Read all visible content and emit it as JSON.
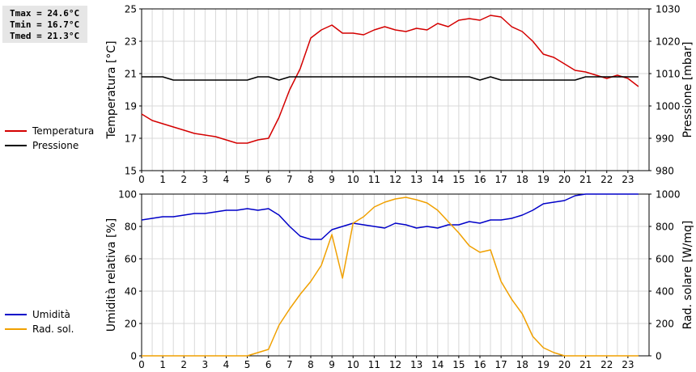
{
  "stats": {
    "tmax": "Tmax = 24.6°C",
    "tmin": "Tmin = 16.7°C",
    "tmed": "Tmed = 21.3°C"
  },
  "legend_top": [
    {
      "label": "Temperatura",
      "color": "#d40000"
    },
    {
      "label": "Pressione",
      "color": "#000000"
    }
  ],
  "legend_bottom": [
    {
      "label": "Umidità",
      "color": "#0000c8"
    },
    {
      "label": "Rad. sol.",
      "color": "#f0a000"
    }
  ],
  "chart_data": [
    {
      "type": "line",
      "x_ticks": [
        "0",
        "1",
        "2",
        "3",
        "4",
        "5",
        "6",
        "7",
        "8",
        "9",
        "10",
        "11",
        "12",
        "13",
        "14",
        "15",
        "16",
        "17",
        "18",
        "19",
        "20",
        "21",
        "22",
        "23"
      ],
      "xlim": [
        0,
        24
      ],
      "ylabel": "Temperatura [°C]",
      "ylim": [
        15,
        25
      ],
      "y_ticks": [
        15,
        17,
        19,
        21,
        23,
        25
      ],
      "y2label": "Pressione [mbar]",
      "y2lim": [
        980,
        1030
      ],
      "y2_ticks": [
        980,
        990,
        1000,
        1010,
        1020,
        1030
      ],
      "grid": true,
      "series": [
        {
          "name": "Temperatura",
          "axis": "left",
          "color": "#d40000",
          "x": [
            0,
            0.5,
            1,
            1.5,
            2,
            2.5,
            3,
            3.5,
            4,
            4.5,
            5,
            5.5,
            6,
            6.5,
            7,
            7.5,
            8,
            8.5,
            9,
            9.5,
            10,
            10.5,
            11,
            11.5,
            12,
            12.5,
            13,
            13.5,
            14,
            14.5,
            15,
            15.5,
            16,
            16.5,
            17,
            17.5,
            18,
            18.5,
            19,
            19.5,
            20,
            20.5,
            21,
            21.5,
            22,
            22.5,
            23,
            23.5
          ],
          "y": [
            18.5,
            18.1,
            17.9,
            17.7,
            17.5,
            17.3,
            17.2,
            17.1,
            16.9,
            16.7,
            16.7,
            16.9,
            17.0,
            18.3,
            20.0,
            21.3,
            23.2,
            23.7,
            24.0,
            23.5,
            23.5,
            23.4,
            23.7,
            23.9,
            23.7,
            23.6,
            23.8,
            23.7,
            24.1,
            23.9,
            24.3,
            24.4,
            24.3,
            24.6,
            24.5,
            23.9,
            23.6,
            23.0,
            22.2,
            22.0,
            21.6,
            21.2,
            21.1,
            20.9,
            20.7,
            20.9,
            20.7,
            20.2
          ]
        },
        {
          "name": "Pressione",
          "axis": "right",
          "color": "#000000",
          "x": [
            0,
            0.5,
            1,
            1.5,
            2,
            2.5,
            3,
            3.5,
            4,
            4.5,
            5,
            5.5,
            6,
            6.5,
            7,
            7.5,
            8,
            8.5,
            9,
            9.5,
            10,
            10.5,
            11,
            11.5,
            12,
            12.5,
            13,
            13.5,
            14,
            14.5,
            15,
            15.5,
            16,
            16.5,
            17,
            17.5,
            18,
            18.5,
            19,
            19.5,
            20,
            20.5,
            21,
            21.5,
            22,
            22.5,
            23,
            23.5
          ],
          "y": [
            1009,
            1009,
            1009,
            1008,
            1008,
            1008,
            1008,
            1008,
            1008,
            1008,
            1008,
            1009,
            1009,
            1008,
            1009,
            1009,
            1009,
            1009,
            1009,
            1009,
            1009,
            1009,
            1009,
            1009,
            1009,
            1009,
            1009,
            1009,
            1009,
            1009,
            1009,
            1009,
            1008,
            1009,
            1008,
            1008,
            1008,
            1008,
            1008,
            1008,
            1008,
            1008,
            1009,
            1009,
            1009,
            1009,
            1009,
            1009
          ]
        }
      ]
    },
    {
      "type": "line",
      "x_ticks": [
        "0",
        "1",
        "2",
        "3",
        "4",
        "5",
        "6",
        "7",
        "8",
        "9",
        "10",
        "11",
        "12",
        "13",
        "14",
        "15",
        "16",
        "17",
        "18",
        "19",
        "20",
        "21",
        "22",
        "23"
      ],
      "xlim": [
        0,
        24
      ],
      "ylabel": "Umidità relativa [%]",
      "ylim": [
        0,
        100
      ],
      "y_ticks": [
        0,
        20,
        40,
        60,
        80,
        100
      ],
      "y2label": "Rad. solare [W/mq]",
      "y2lim": [
        0,
        1000
      ],
      "y2_ticks": [
        0,
        200,
        400,
        600,
        800,
        1000
      ],
      "grid": true,
      "series": [
        {
          "name": "Umidità",
          "axis": "left",
          "color": "#0000c8",
          "x": [
            0,
            0.5,
            1,
            1.5,
            2,
            2.5,
            3,
            3.5,
            4,
            4.5,
            5,
            5.5,
            6,
            6.5,
            7,
            7.5,
            8,
            8.5,
            9,
            9.5,
            10,
            10.5,
            11,
            11.5,
            12,
            12.5,
            13,
            13.5,
            14,
            14.5,
            15,
            15.5,
            16,
            16.5,
            17,
            17.5,
            18,
            18.5,
            19,
            19.5,
            20,
            20.5,
            21,
            21.5,
            22,
            22.5,
            23,
            23.5
          ],
          "y": [
            84,
            85,
            86,
            86,
            87,
            88,
            88,
            89,
            90,
            90,
            91,
            90,
            91,
            87,
            80,
            74,
            72,
            72,
            78,
            80,
            82,
            81,
            80,
            79,
            82,
            81,
            79,
            80,
            79,
            81,
            81,
            83,
            82,
            84,
            84,
            85,
            87,
            90,
            94,
            95,
            96,
            99,
            100,
            100,
            100,
            100,
            100,
            100
          ]
        },
        {
          "name": "Rad. sol.",
          "axis": "right",
          "color": "#f0a000",
          "x": [
            0,
            0.5,
            1,
            1.5,
            2,
            2.5,
            3,
            3.5,
            4,
            4.5,
            5,
            5.5,
            6,
            6.5,
            7,
            7.5,
            8,
            8.5,
            9,
            9.5,
            10,
            10.5,
            11,
            11.5,
            12,
            12.5,
            13,
            13.5,
            14,
            14.5,
            15,
            15.5,
            16,
            16.5,
            17,
            17.5,
            18,
            18.5,
            19,
            19.5,
            20,
            20.5,
            21,
            21.5,
            22,
            22.5,
            23,
            23.5
          ],
          "y": [
            0,
            0,
            0,
            0,
            0,
            0,
            0,
            0,
            0,
            0,
            0,
            20,
            40,
            190,
            290,
            380,
            460,
            560,
            750,
            480,
            820,
            860,
            920,
            950,
            970,
            980,
            965,
            945,
            900,
            830,
            760,
            680,
            640,
            655,
            460,
            350,
            260,
            120,
            50,
            20,
            0,
            0,
            0,
            0,
            0,
            0,
            0,
            0
          ]
        }
      ]
    }
  ]
}
